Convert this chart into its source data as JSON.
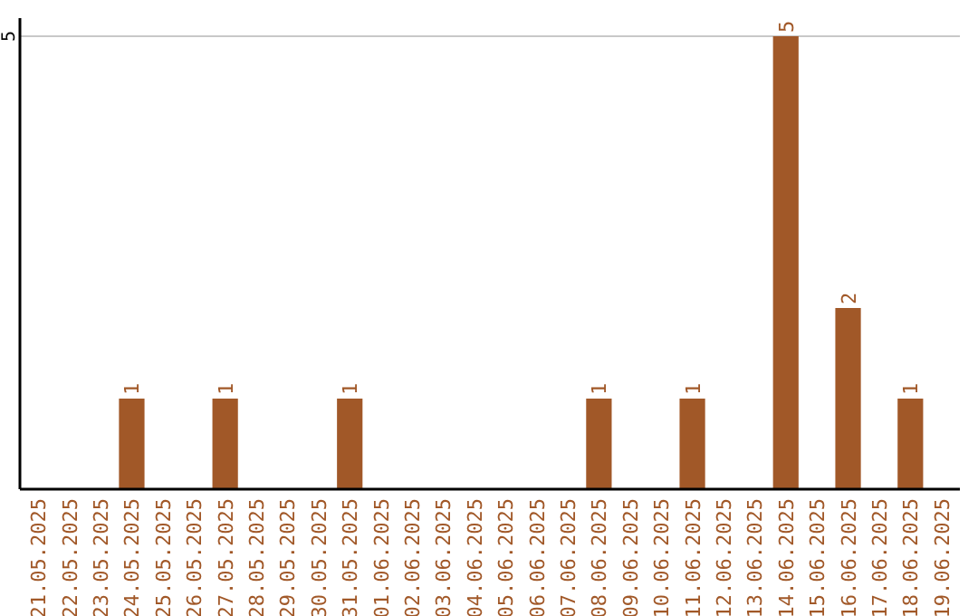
{
  "chart_data": {
    "type": "bar",
    "categories": [
      "21.05.2025",
      "22.05.2025",
      "23.05.2025",
      "24.05.2025",
      "25.05.2025",
      "26.05.2025",
      "27.05.2025",
      "28.05.2025",
      "29.05.2025",
      "30.05.2025",
      "31.05.2025",
      "01.06.2025",
      "02.06.2025",
      "03.06.2025",
      "04.06.2025",
      "05.06.2025",
      "06.06.2025",
      "07.06.2025",
      "08.06.2025",
      "09.06.2025",
      "10.06.2025",
      "11.06.2025",
      "12.06.2025",
      "13.06.2025",
      "14.06.2025",
      "15.06.2025",
      "16.06.2025",
      "17.06.2025",
      "18.06.2025",
      "19.06.2025"
    ],
    "values": [
      0,
      0,
      0,
      1,
      0,
      0,
      1,
      0,
      0,
      0,
      1,
      0,
      0,
      0,
      0,
      0,
      0,
      0,
      1,
      0,
      0,
      1,
      0,
      0,
      5,
      0,
      2,
      0,
      1,
      0
    ],
    "value_labels": [
      null,
      null,
      null,
      "1",
      null,
      null,
      "1",
      null,
      null,
      null,
      "1",
      null,
      null,
      null,
      null,
      null,
      null,
      null,
      "1",
      null,
      null,
      "1",
      null,
      null,
      "5",
      null,
      "2",
      null,
      "1",
      null
    ],
    "color": "#a15828",
    "ylim": [
      0,
      5.2
    ],
    "yticks": [
      5
    ],
    "grid": "y"
  }
}
